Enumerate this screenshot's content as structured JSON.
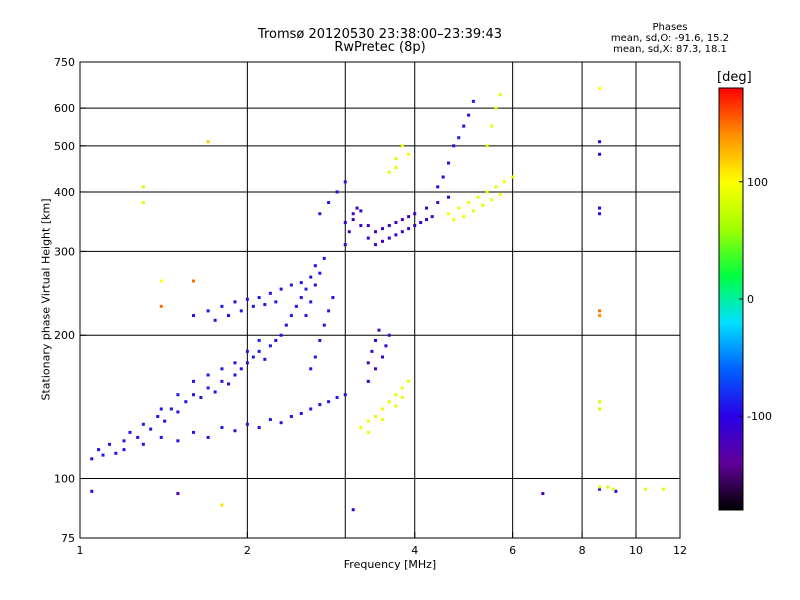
{
  "chart_data": {
    "type": "scatter",
    "title": "Tromsø 20120530 23:38:00–23:39:43",
    "subtitle": "RwPretec (8p)",
    "stats": {
      "heading": "Phases",
      "line_o": "mean, sd,O: -91.6, 15.2",
      "line_x": "mean, sd,X:  87.3, 18.1"
    },
    "xlabel": "Frequency [MHz]",
    "ylabel": "Stationary phase Virtual Height [km]",
    "x_scale": "log",
    "y_scale": "log",
    "xlim": [
      1,
      12
    ],
    "ylim": [
      75,
      750
    ],
    "x_ticks": [
      {
        "v": 1,
        "label": "1"
      },
      {
        "v": 2,
        "label": "2"
      },
      {
        "v": 4,
        "label": "4"
      },
      {
        "v": 6,
        "label": "6"
      },
      {
        "v": 8,
        "label": "8"
      },
      {
        "v": 10,
        "label": "10"
      },
      {
        "v": 12,
        "label": "12"
      }
    ],
    "y_ticks": [
      {
        "v": 75,
        "label": "75"
      },
      {
        "v": 100,
        "label": "100"
      },
      {
        "v": 200,
        "label": "200"
      },
      {
        "v": 300,
        "label": "300"
      },
      {
        "v": 400,
        "label": "400"
      },
      {
        "v": 500,
        "label": "500"
      },
      {
        "v": 600,
        "label": "600"
      },
      {
        "v": 750,
        "label": "750"
      }
    ],
    "x_grid": [
      2,
      3,
      4,
      6,
      8,
      10
    ],
    "y_grid": [
      100,
      200,
      300,
      400,
      500,
      600
    ],
    "grid": true,
    "colorbar": {
      "unit": "[deg]",
      "range": [
        -180,
        180
      ],
      "ticks": [
        {
          "v": 100,
          "label": "100"
        },
        {
          "v": 0,
          "label": "0"
        },
        {
          "v": -100,
          "label": "-100"
        }
      ],
      "colors": [
        "#000000",
        "#60009a",
        "#2a00e6",
        "#0060ff",
        "#00e0ff",
        "#00ff40",
        "#a0ff00",
        "#ffff00",
        "#ff9000",
        "#ff0000"
      ]
    },
    "series": [
      {
        "mode": "O",
        "points": [
          [
            1.05,
            110,
            -95
          ],
          [
            1.08,
            115,
            -95
          ],
          [
            1.1,
            112,
            -90
          ],
          [
            1.13,
            118,
            -92
          ],
          [
            1.16,
            113,
            -96
          ],
          [
            1.2,
            120,
            -90
          ],
          [
            1.23,
            125,
            -92
          ],
          [
            1.27,
            122,
            -95
          ],
          [
            1.3,
            130,
            -90
          ],
          [
            1.34,
            127,
            -93
          ],
          [
            1.38,
            135,
            -90
          ],
          [
            1.42,
            132,
            -95
          ],
          [
            1.46,
            140,
            -91
          ],
          [
            1.5,
            138,
            -94
          ],
          [
            1.55,
            145,
            -90
          ],
          [
            1.6,
            150,
            -92
          ],
          [
            1.65,
            148,
            -95
          ],
          [
            1.7,
            155,
            -90
          ],
          [
            1.75,
            152,
            -93
          ],
          [
            1.8,
            160,
            -92
          ],
          [
            1.85,
            158,
            -95
          ],
          [
            1.9,
            165,
            -90
          ],
          [
            1.95,
            170,
            -92
          ],
          [
            2.0,
            175,
            -94
          ],
          [
            2.05,
            180,
            -90
          ],
          [
            2.1,
            185,
            -92
          ],
          [
            2.15,
            178,
            -95
          ],
          [
            2.2,
            190,
            -90
          ],
          [
            2.25,
            195,
            -93
          ],
          [
            2.3,
            200,
            -92
          ],
          [
            2.35,
            210,
            -95
          ],
          [
            2.4,
            220,
            -90
          ],
          [
            2.45,
            230,
            -92
          ],
          [
            2.5,
            240,
            -94
          ],
          [
            2.55,
            250,
            -90
          ],
          [
            2.6,
            265,
            -93
          ],
          [
            2.65,
            280,
            -92
          ],
          [
            1.2,
            115,
            -95
          ],
          [
            1.3,
            118,
            -92
          ],
          [
            1.4,
            122,
            -90
          ],
          [
            1.5,
            120,
            -95
          ],
          [
            1.6,
            125,
            -92
          ],
          [
            1.7,
            122,
            -94
          ],
          [
            1.8,
            128,
            -90
          ],
          [
            1.9,
            126,
            -93
          ],
          [
            2.0,
            130,
            -92
          ],
          [
            2.1,
            128,
            -95
          ],
          [
            2.2,
            133,
            -90
          ],
          [
            2.3,
            131,
            -93
          ],
          [
            2.4,
            135,
            -92
          ],
          [
            2.5,
            137,
            -94
          ],
          [
            2.6,
            140,
            -90
          ],
          [
            2.7,
            143,
            -93
          ],
          [
            2.8,
            145,
            -92
          ],
          [
            2.9,
            148,
            -90
          ],
          [
            3.0,
            150,
            -95
          ],
          [
            1.4,
            140,
            -92
          ],
          [
            1.5,
            150,
            -90
          ],
          [
            1.6,
            160,
            -95
          ],
          [
            1.7,
            165,
            -92
          ],
          [
            1.8,
            170,
            -90
          ],
          [
            1.9,
            175,
            -94
          ],
          [
            2.0,
            185,
            -92
          ],
          [
            2.1,
            195,
            -90
          ],
          [
            2.6,
            170,
            -92
          ],
          [
            2.65,
            180,
            -90
          ],
          [
            2.7,
            195,
            -95
          ],
          [
            2.75,
            210,
            -92
          ],
          [
            2.8,
            225,
            -90
          ],
          [
            2.85,
            240,
            -94
          ],
          [
            1.6,
            220,
            -95
          ],
          [
            1.7,
            225,
            -92
          ],
          [
            1.8,
            230,
            -90
          ],
          [
            1.9,
            235,
            -94
          ],
          [
            2.0,
            238,
            -92
          ],
          [
            2.1,
            240,
            -90
          ],
          [
            2.2,
            245,
            -95
          ],
          [
            2.3,
            250,
            -92
          ],
          [
            2.4,
            255,
            -90
          ],
          [
            2.5,
            258,
            -94
          ],
          [
            1.75,
            215,
            -92
          ],
          [
            1.85,
            220,
            -95
          ],
          [
            1.95,
            225,
            -90
          ],
          [
            2.05,
            230,
            -92
          ],
          [
            2.15,
            232,
            -94
          ],
          [
            2.25,
            235,
            -90
          ],
          [
            2.55,
            220,
            -92
          ],
          [
            2.6,
            235,
            -90
          ],
          [
            2.65,
            255,
            -95
          ],
          [
            2.7,
            270,
            -92
          ],
          [
            2.75,
            290,
            -90
          ],
          [
            3.0,
            310,
            -110
          ],
          [
            3.05,
            330,
            -120
          ],
          [
            3.1,
            350,
            -115
          ],
          [
            3.15,
            370,
            -110
          ],
          [
            3.2,
            340,
            -118
          ],
          [
            3.3,
            320,
            -112
          ],
          [
            3.4,
            310,
            -115
          ],
          [
            3.5,
            315,
            -120
          ],
          [
            3.6,
            320,
            -112
          ],
          [
            3.7,
            325,
            -110
          ],
          [
            3.8,
            330,
            -118
          ],
          [
            3.9,
            335,
            -115
          ],
          [
            4.0,
            340,
            -112
          ],
          [
            4.1,
            345,
            -110
          ],
          [
            4.2,
            350,
            -115
          ],
          [
            4.3,
            355,
            -120
          ],
          [
            3.0,
            345,
            -112
          ],
          [
            3.1,
            360,
            -118
          ],
          [
            3.2,
            365,
            -110
          ],
          [
            3.3,
            340,
            -115
          ],
          [
            3.4,
            330,
            -120
          ],
          [
            3.5,
            335,
            -112
          ],
          [
            3.6,
            340,
            -110
          ],
          [
            3.7,
            345,
            -118
          ],
          [
            3.8,
            350,
            -115
          ],
          [
            3.9,
            355,
            -112
          ],
          [
            4.0,
            360,
            -110
          ],
          [
            4.2,
            370,
            -115
          ],
          [
            4.4,
            380,
            -120
          ],
          [
            4.6,
            390,
            -112
          ],
          [
            3.3,
            175,
            -120
          ],
          [
            3.35,
            185,
            -115
          ],
          [
            3.4,
            195,
            -110
          ],
          [
            3.45,
            205,
            -118
          ],
          [
            3.3,
            160,
            -112
          ],
          [
            3.4,
            170,
            -118
          ],
          [
            3.5,
            180,
            -112
          ],
          [
            3.55,
            190,
            -110
          ],
          [
            3.6,
            200,
            -115
          ],
          [
            4.5,
            430,
            -100
          ],
          [
            4.6,
            460,
            -95
          ],
          [
            4.7,
            500,
            -92
          ],
          [
            4.8,
            520,
            -90
          ],
          [
            4.9,
            550,
            -95
          ],
          [
            5.0,
            580,
            -92
          ],
          [
            5.1,
            620,
            -90
          ],
          [
            4.4,
            410,
            -98
          ],
          [
            2.8,
            380,
            -90
          ],
          [
            2.9,
            400,
            -95
          ],
          [
            3.0,
            420,
            -92
          ],
          [
            2.7,
            360,
            -90
          ],
          [
            1.05,
            94,
            -100
          ],
          [
            1.5,
            93,
            -120
          ],
          [
            3.1,
            86,
            -110
          ],
          [
            6.8,
            93,
            -120
          ],
          [
            8.6,
            95,
            -100
          ],
          [
            9.2,
            94,
            -100
          ],
          [
            8.6,
            480,
            -100
          ],
          [
            8.6,
            510,
            -110
          ],
          [
            8.6,
            370,
            -100
          ],
          [
            8.6,
            360,
            -95
          ]
        ]
      },
      {
        "mode": "X",
        "points": [
          [
            3.2,
            128,
            95
          ],
          [
            3.3,
            132,
            90
          ],
          [
            3.4,
            135,
            85
          ],
          [
            3.5,
            140,
            95
          ],
          [
            3.6,
            145,
            90
          ],
          [
            3.7,
            150,
            88
          ],
          [
            3.8,
            155,
            92
          ],
          [
            3.9,
            160,
            90
          ],
          [
            3.3,
            125,
            92
          ],
          [
            3.5,
            133,
            90
          ],
          [
            3.7,
            142,
            88
          ],
          [
            3.8,
            148,
            95
          ],
          [
            3.6,
            440,
            90
          ],
          [
            3.7,
            470,
            88
          ],
          [
            3.8,
            500,
            92
          ],
          [
            3.9,
            480,
            95
          ],
          [
            3.7,
            450,
            85
          ],
          [
            4.6,
            360,
            100
          ],
          [
            4.8,
            370,
            90
          ],
          [
            5.0,
            380,
            95
          ],
          [
            5.2,
            390,
            88
          ],
          [
            5.4,
            400,
            92
          ],
          [
            5.6,
            410,
            90
          ],
          [
            5.8,
            420,
            95
          ],
          [
            6.0,
            430,
            88
          ],
          [
            4.7,
            350,
            92
          ],
          [
            4.9,
            355,
            95
          ],
          [
            5.1,
            365,
            90
          ],
          [
            5.3,
            375,
            88
          ],
          [
            5.5,
            385,
            92
          ],
          [
            5.7,
            395,
            95
          ],
          [
            5.4,
            500,
            85
          ],
          [
            5.5,
            550,
            90
          ],
          [
            5.6,
            600,
            88
          ],
          [
            5.7,
            640,
            92
          ],
          [
            8.6,
            660,
            100
          ],
          [
            8.6,
            225,
            150
          ],
          [
            8.6,
            220,
            140
          ],
          [
            8.6,
            145,
            80
          ],
          [
            8.6,
            140,
            75
          ],
          [
            8.6,
            96,
            90
          ],
          [
            8.9,
            96,
            85
          ],
          [
            9.1,
            95,
            92
          ],
          [
            10.4,
            95,
            88
          ],
          [
            11.2,
            95,
            92
          ],
          [
            1.3,
            410,
            80
          ],
          [
            1.3,
            380,
            85
          ],
          [
            1.4,
            260,
            100
          ],
          [
            1.4,
            230,
            150
          ],
          [
            1.6,
            260,
            150
          ],
          [
            1.7,
            510,
            120
          ],
          [
            1.8,
            88,
            110
          ]
        ]
      }
    ]
  }
}
